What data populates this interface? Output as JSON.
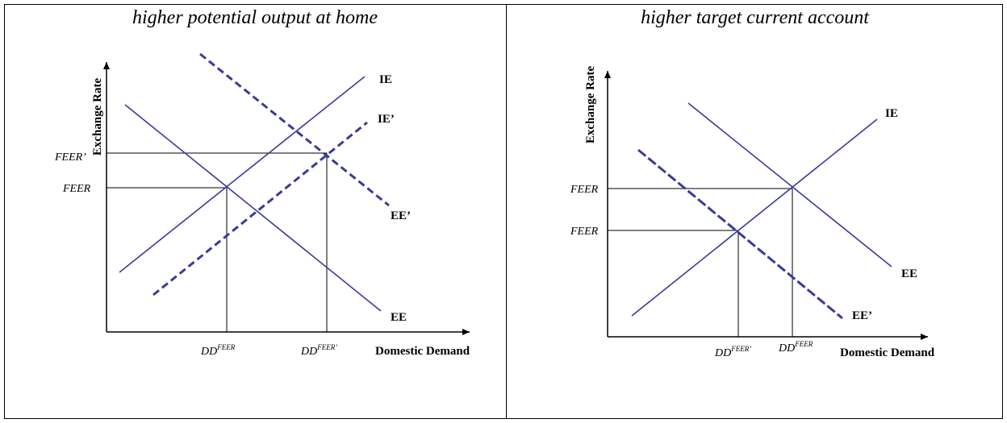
{
  "panels": [
    {
      "title": "higher potential output at home",
      "y_axis_label": "Exchange Rate",
      "x_axis_label": "Domestic Demand",
      "curves": {
        "ie": "IE",
        "ie_prime": "IE’",
        "ee": "EE",
        "ee_prime": "EE’"
      },
      "y_ticks": [
        "FEER’",
        "FEER"
      ],
      "x_ticks": [
        {
          "base": "DD",
          "sup": "FEER"
        },
        {
          "base": "DD",
          "sup": "FEER’"
        }
      ]
    },
    {
      "title": "higher target current account",
      "y_axis_label": "Exchange Rate",
      "x_axis_label": "Domestic Demand",
      "curves": {
        "ie": "IE",
        "ee": "EE",
        "ee_prime": "EE’"
      },
      "y_ticks": [
        "FEER",
        "FEER"
      ],
      "x_ticks": [
        {
          "base": "DD",
          "sup": "FEER’"
        },
        {
          "base": "DD",
          "sup": "FEER"
        }
      ]
    }
  ],
  "colors": {
    "curve": "#3a3a9a",
    "axis": "#000000"
  }
}
